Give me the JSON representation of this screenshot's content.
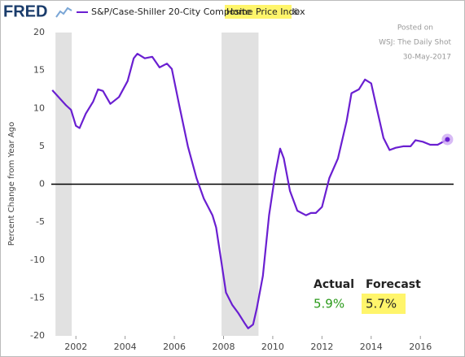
{
  "chart_data": {
    "type": "line",
    "logo": "FRED",
    "title_parts": [
      "S&P/Case-Shiller 20-City Composite",
      "Home Price Index",
      "©"
    ],
    "y_label": "Percent Change from Year Ago",
    "annotations": [
      "Posted on",
      "WSJ: The Daily Shot",
      "30-May-2017"
    ],
    "callout": {
      "actual_label": "Actual",
      "actual_value": "5.9%",
      "forecast_label": "Forecast",
      "forecast_value": "5.7%"
    },
    "xlim": [
      2001.0,
      2017.35
    ],
    "xticks": [
      2002,
      2004,
      2006,
      2008,
      2010,
      2012,
      2014,
      2016
    ],
    "ylim": [
      -20,
      20
    ],
    "yticks": [
      -20,
      -15,
      -10,
      -5,
      0,
      5,
      10,
      15,
      20
    ],
    "grid": false,
    "recessions": [
      [
        2001.17,
        2001.83
      ],
      [
        2007.92,
        2009.42
      ]
    ],
    "series": [
      {
        "color": "#6a1fd1",
        "x": [
          2001.04,
          2001.6,
          2001.8,
          2002.0,
          2002.15,
          2002.4,
          2002.7,
          2002.9,
          2003.1,
          2003.4,
          2003.75,
          2004.1,
          2004.35,
          2004.5,
          2004.8,
          2005.1,
          2005.4,
          2005.7,
          2005.9,
          2006.2,
          2006.55,
          2006.9,
          2007.2,
          2007.55,
          2007.7,
          2007.9,
          2008.1,
          2008.35,
          2008.6,
          2008.85,
          2009.0,
          2009.2,
          2009.35,
          2009.6,
          2009.85,
          2010.1,
          2010.3,
          2010.45,
          2010.7,
          2011.0,
          2011.35,
          2011.55,
          2011.75,
          2012.0,
          2012.3,
          2012.65,
          2013.0,
          2013.2,
          2013.5,
          2013.75,
          2014.0,
          2014.2,
          2014.5,
          2014.75,
          2015.0,
          2015.3,
          2015.6,
          2015.8,
          2016.1,
          2016.4,
          2016.7,
          2017.1
        ],
        "values": [
          12.4,
          10.4,
          9.8,
          7.7,
          7.4,
          9.3,
          10.9,
          12.5,
          12.3,
          10.6,
          11.5,
          13.6,
          16.6,
          17.2,
          16.6,
          16.8,
          15.4,
          15.9,
          15.2,
          10.4,
          5.0,
          0.8,
          -1.9,
          -4.1,
          -5.7,
          -10.0,
          -14.3,
          -15.9,
          -17.0,
          -18.3,
          -19.0,
          -18.5,
          -16.4,
          -12.1,
          -4.1,
          1.3,
          4.7,
          3.4,
          -0.9,
          -3.5,
          -4.1,
          -3.8,
          -3.8,
          -3.0,
          0.8,
          3.4,
          8.3,
          12.0,
          12.5,
          13.8,
          13.3,
          10.4,
          6.1,
          4.5,
          4.8,
          5.0,
          5.0,
          5.8,
          5.6,
          5.2,
          5.2,
          5.9
        ]
      }
    ]
  }
}
